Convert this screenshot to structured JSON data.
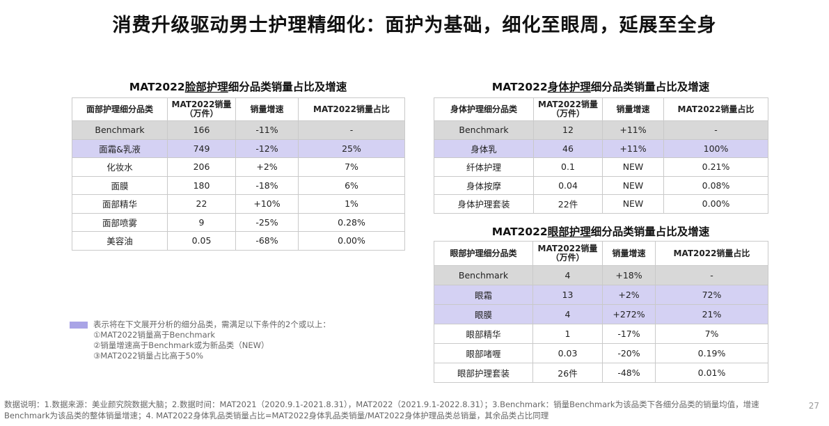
{
  "title": "消费升级驱动男士护理精细化：面护为基础，细化至眼周，延展至全身",
  "face": {
    "title_prefix": "MAT2022",
    "title_highlight": "脸部护理",
    "title_suffix": "细分品类销量占比及增速",
    "headers": [
      "面部护理细分品类",
      "MAT2022销量\n（万件）",
      "销量增速",
      "MAT2022销量占比"
    ],
    "rows": [
      {
        "name": "Benchmark",
        "volume": "166",
        "growth": "-11%",
        "share": "-",
        "style": "bench"
      },
      {
        "name": "面霜&乳液",
        "volume": "749",
        "growth": "-12%",
        "share": "25%",
        "style": "hl"
      },
      {
        "name": "化妆水",
        "volume": "206",
        "growth": "+2%",
        "share": "7%",
        "style": ""
      },
      {
        "name": "面膜",
        "volume": "180",
        "growth": "-18%",
        "share": "6%",
        "style": ""
      },
      {
        "name": "面部精华",
        "volume": "22",
        "growth": "+10%",
        "share": "1%",
        "style": ""
      },
      {
        "name": "面部喷雾",
        "volume": "9",
        "growth": "-25%",
        "share": "0.28%",
        "style": ""
      },
      {
        "name": "美容油",
        "volume": "0.05",
        "growth": "-68%",
        "share": "0.00%",
        "style": ""
      }
    ]
  },
  "body_care": {
    "title_prefix": "MAT2022",
    "title_highlight": "身体护理",
    "title_suffix": "细分品类销量占比及增速",
    "headers": [
      "身体护理细分品类",
      "MAT2022销量\n（万件）",
      "销量增速",
      "MAT2022销量占比"
    ],
    "rows": [
      {
        "name": "Benchmark",
        "volume": "12",
        "growth": "+11%",
        "share": "-",
        "style": "bench"
      },
      {
        "name": "身体乳",
        "volume": "46",
        "growth": "+11%",
        "share": "100%",
        "style": "hl"
      },
      {
        "name": "纤体护理",
        "volume": "0.1",
        "growth": "NEW",
        "share": "0.21%",
        "style": ""
      },
      {
        "name": "身体按摩",
        "volume": "0.04",
        "growth": "NEW",
        "share": "0.08%",
        "style": ""
      },
      {
        "name": "身体护理套装",
        "volume": "22件",
        "growth": "NEW",
        "share": "0.00%",
        "style": ""
      }
    ]
  },
  "eye": {
    "title_prefix": "MAT2022",
    "title_highlight": "眼部护理",
    "title_suffix": "细分品类销量占比及增速",
    "headers": [
      "眼部护理细分品类",
      "MAT2022销量\n（万件）",
      "销量增速",
      "MAT2022销量占比"
    ],
    "rows": [
      {
        "name": "Benchmark",
        "volume": "4",
        "growth": "+18%",
        "share": "-",
        "style": "bench"
      },
      {
        "name": "眼霜",
        "volume": "13",
        "growth": "+2%",
        "share": "72%",
        "style": "hl"
      },
      {
        "name": "眼膜",
        "volume": "4",
        "growth": "+272%",
        "share": "21%",
        "style": "hl"
      },
      {
        "name": "眼部精华",
        "volume": "1",
        "growth": "-17%",
        "share": "7%",
        "style": ""
      },
      {
        "name": "眼部啫喱",
        "volume": "0.03",
        "growth": "-20%",
        "share": "0.19%",
        "style": ""
      },
      {
        "name": "眼部护理套装",
        "volume": "26件",
        "growth": "-48%",
        "share": "0.01%",
        "style": ""
      }
    ]
  },
  "legend": {
    "color": "#a9a4e6",
    "lines": [
      "表示将在下文展开分析的细分品类，需满足以下条件的2个或以上：",
      "①MAT2022销量高于Benchmark",
      "②销量增速高于Benchmark或为新品类（NEW）",
      "③MAT2022销量占比高于50%"
    ]
  },
  "footer": "数据说明：1.数据来源：美业颜究院数据大脑；2.数据时间：MAT2021（2020.9.1-2021.8.31），MAT2022（2021.9.1-2022.8.31）；3.Benchmark：销量Benchmark为该品类下各细分品类的销量均值，增速Benchmark为该品类的整体销量增速；4. MAT2022身体乳品类销量占比=MAT2022身体乳品类销量/MAT2022身体护理品类总销量，其余品类占比同理",
  "page_number": "27"
}
